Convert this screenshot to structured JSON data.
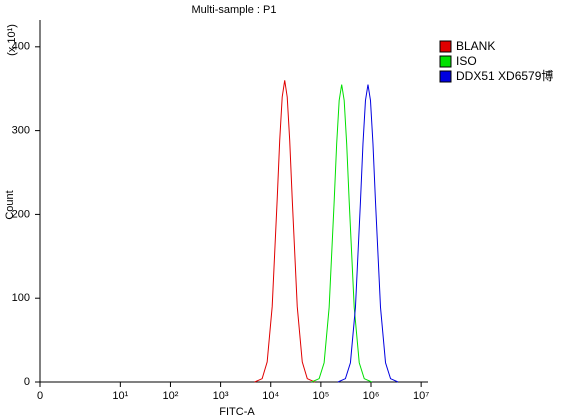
{
  "chart_data": {
    "type": "line",
    "title": "Multi-sample : P1",
    "x_label": "FITC-A",
    "y_label": "Count",
    "y_multiplier": "(x 10¹)",
    "xscale": "logicle",
    "xlim": [
      0,
      13700000
    ],
    "ylim": [
      0,
      432
    ],
    "xticks": [
      0,
      {
        "value": 10,
        "label": "10¹"
      },
      {
        "value": 100,
        "label": "10²"
      },
      {
        "value": 1000,
        "label": "10³"
      },
      {
        "value": 10000,
        "label": "10⁴"
      },
      {
        "value": 100000,
        "label": "10⁵"
      },
      {
        "value": 1000000,
        "label": "10⁶"
      },
      {
        "value": 10000000,
        "label": "10⁷"
      }
    ],
    "yticks": [
      0,
      100,
      200,
      300,
      400
    ],
    "legend": "right",
    "series": [
      {
        "name": "BLANK",
        "color": "#e00000",
        "x": [
          4773,
          6740,
          8490,
          10690,
          13450,
          15090,
          16930,
          19000,
          21320,
          23920,
          26850,
          33780,
          42540,
          53540,
          75640
        ],
        "values": [
          0,
          4,
          24,
          90,
          218,
          288,
          340,
          360,
          340,
          288,
          218,
          90,
          24,
          4,
          0
        ]
      },
      {
        "name": "ISO",
        "color": "#00e000",
        "x": [
          65310,
          92260,
          116100,
          146200,
          184000,
          206500,
          231700,
          260000,
          291700,
          327300,
          367400,
          462300,
          582100,
          732700,
          1035000
        ],
        "values": [
          0,
          4,
          23,
          89,
          215,
          284,
          336,
          355,
          336,
          284,
          215,
          89,
          23,
          4,
          0
        ]
      },
      {
        "name": "DDX51  XD6579博",
        "color": "#0000e0",
        "x": [
          218500,
          308700,
          388600,
          489300,
          615700,
          691000,
          775400,
          870000,
          976100,
          1095000,
          1229000,
          1547000,
          1948000,
          2452000,
          3464000
        ],
        "values": [
          0,
          4,
          23,
          89,
          215,
          284,
          336,
          355,
          336,
          284,
          215,
          89,
          23,
          4,
          0
        ]
      }
    ]
  }
}
